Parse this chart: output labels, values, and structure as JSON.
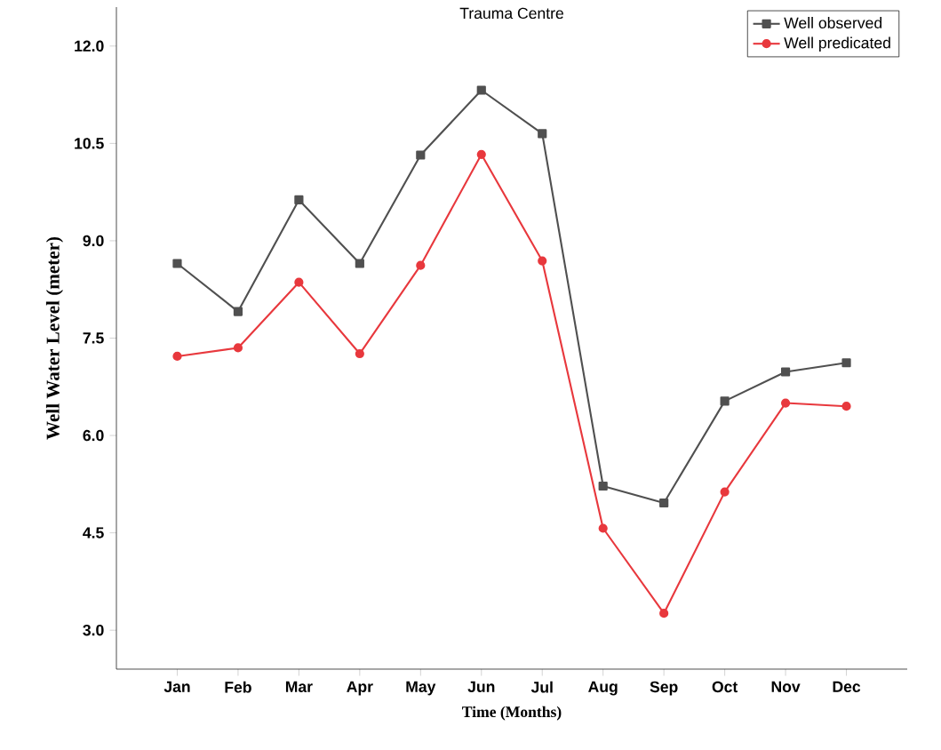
{
  "chart_data": {
    "type": "line",
    "title": "Trauma Centre",
    "xlabel": "Time (Months)",
    "ylabel": "Well Water Level (meter)",
    "categories": [
      "Jan",
      "Feb",
      "Mar",
      "Apr",
      "May",
      "Jun",
      "Jul",
      "Aug",
      "Sep",
      "Oct",
      "Nov",
      "Dec"
    ],
    "series": [
      {
        "name": "Well observed",
        "color": "#505050",
        "marker": "square",
        "values": [
          8.65,
          7.91,
          9.63,
          8.65,
          10.32,
          11.32,
          10.65,
          5.22,
          4.96,
          6.53,
          6.98,
          7.12
        ]
      },
      {
        "name": "Well predicated",
        "color": "#e8383d",
        "marker": "circle",
        "values": [
          7.22,
          7.35,
          8.36,
          7.26,
          8.62,
          10.33,
          8.69,
          4.57,
          3.26,
          5.13,
          6.5,
          6.45
        ]
      }
    ],
    "ylim": [
      2.4,
      12.6
    ],
    "yticks": [
      {
        "value": 3,
        "label": "3.0"
      },
      4.5,
      {
        "value": 6,
        "label": "6.0"
      },
      7.5,
      {
        "value": 9,
        "label": "9.0"
      },
      10.5,
      {
        "value": 12,
        "label": "12.0"
      }
    ],
    "legend": "top right",
    "grid": false
  }
}
